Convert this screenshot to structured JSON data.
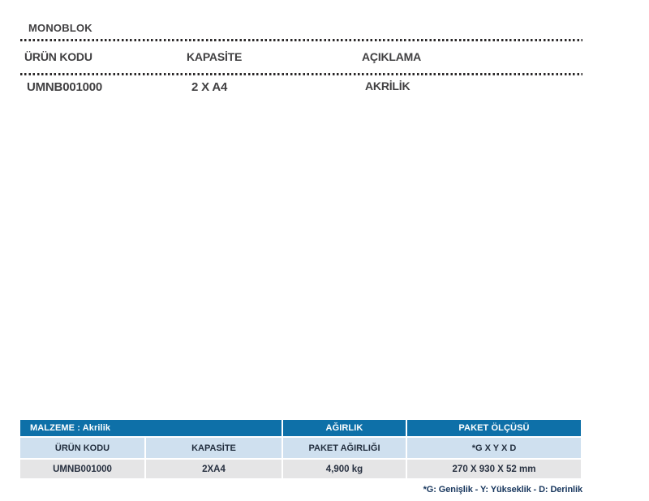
{
  "top_section": {
    "title": "MONOBLOK",
    "columns": [
      {
        "header": "ÜRÜN KODU",
        "value": "UMNB001000"
      },
      {
        "header": "KAPASİTE",
        "value": "2 X A4"
      },
      {
        "header": "AÇIKLAMA",
        "value": "AKRİLİK"
      }
    ]
  },
  "spec_table": {
    "header_row": {
      "material": "MALZEME : Akrilik",
      "weight": "AĞIRLIK",
      "package_size": "PAKET ÖLÇÜSÜ"
    },
    "subheader_row": [
      "ÜRÜN KODU",
      "KAPASİTE",
      "PAKET AĞIRLIĞI",
      "*G X Y X D"
    ],
    "data_row": [
      "UMNB001000",
      "2XA4",
      "4,900 kg",
      "270 X 930 X 52 mm"
    ],
    "footnote": "*G: Genişlik - Y: Yükseklik - D: Derinlik"
  },
  "colors": {
    "header_blue": "#0e70a8",
    "subheader_light_blue": "#cfe0ef",
    "data_gray": "#e5e5e6",
    "top_text": "#414042",
    "footnote_navy": "#17365d"
  }
}
